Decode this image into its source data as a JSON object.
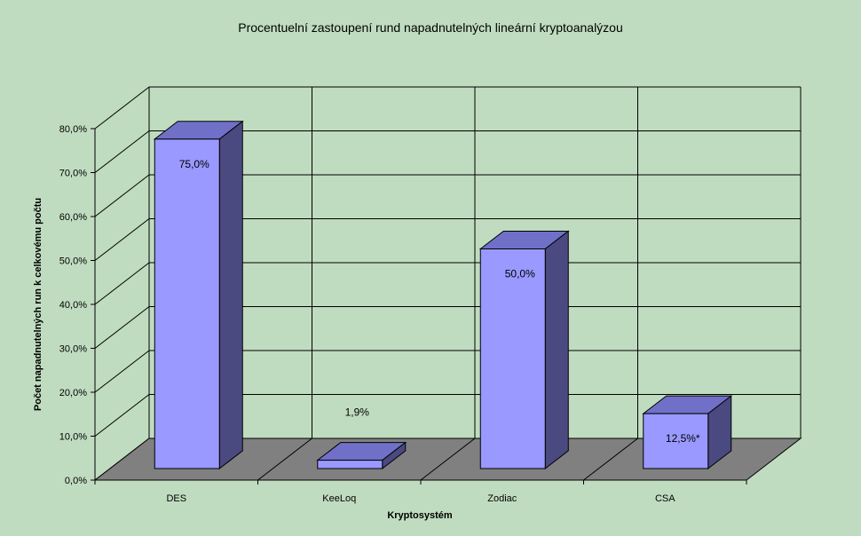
{
  "chart_data": {
    "type": "bar",
    "title": "Procentuelní zastoupení rund napadnutelných lineární kryptoanalýzou",
    "xlabel": "Kryptosystém",
    "ylabel": "Počet napadnutelných run k celkovému počtu",
    "categories": [
      "DES",
      "KeeLoq",
      "Zodiac",
      "CSA"
    ],
    "values": [
      75.0,
      1.9,
      50.0,
      12.5
    ],
    "data_labels": [
      "75,0%",
      "1,9%",
      "50,0%",
      "12,5%*"
    ],
    "ylim": [
      0,
      80
    ],
    "yticks": [
      "0,0%",
      "10,0%",
      "20,0%",
      "30,0%",
      "40,0%",
      "50,0%",
      "60,0%",
      "70,0%",
      "80,0%"
    ],
    "grid": true,
    "style": "3d-column",
    "colors": {
      "background": "#c0dcc0",
      "floor": "#808080",
      "bar_front": "#9999ff",
      "bar_top": "#7070c8",
      "bar_side": "#4a4a80",
      "grid": "#000000"
    }
  }
}
